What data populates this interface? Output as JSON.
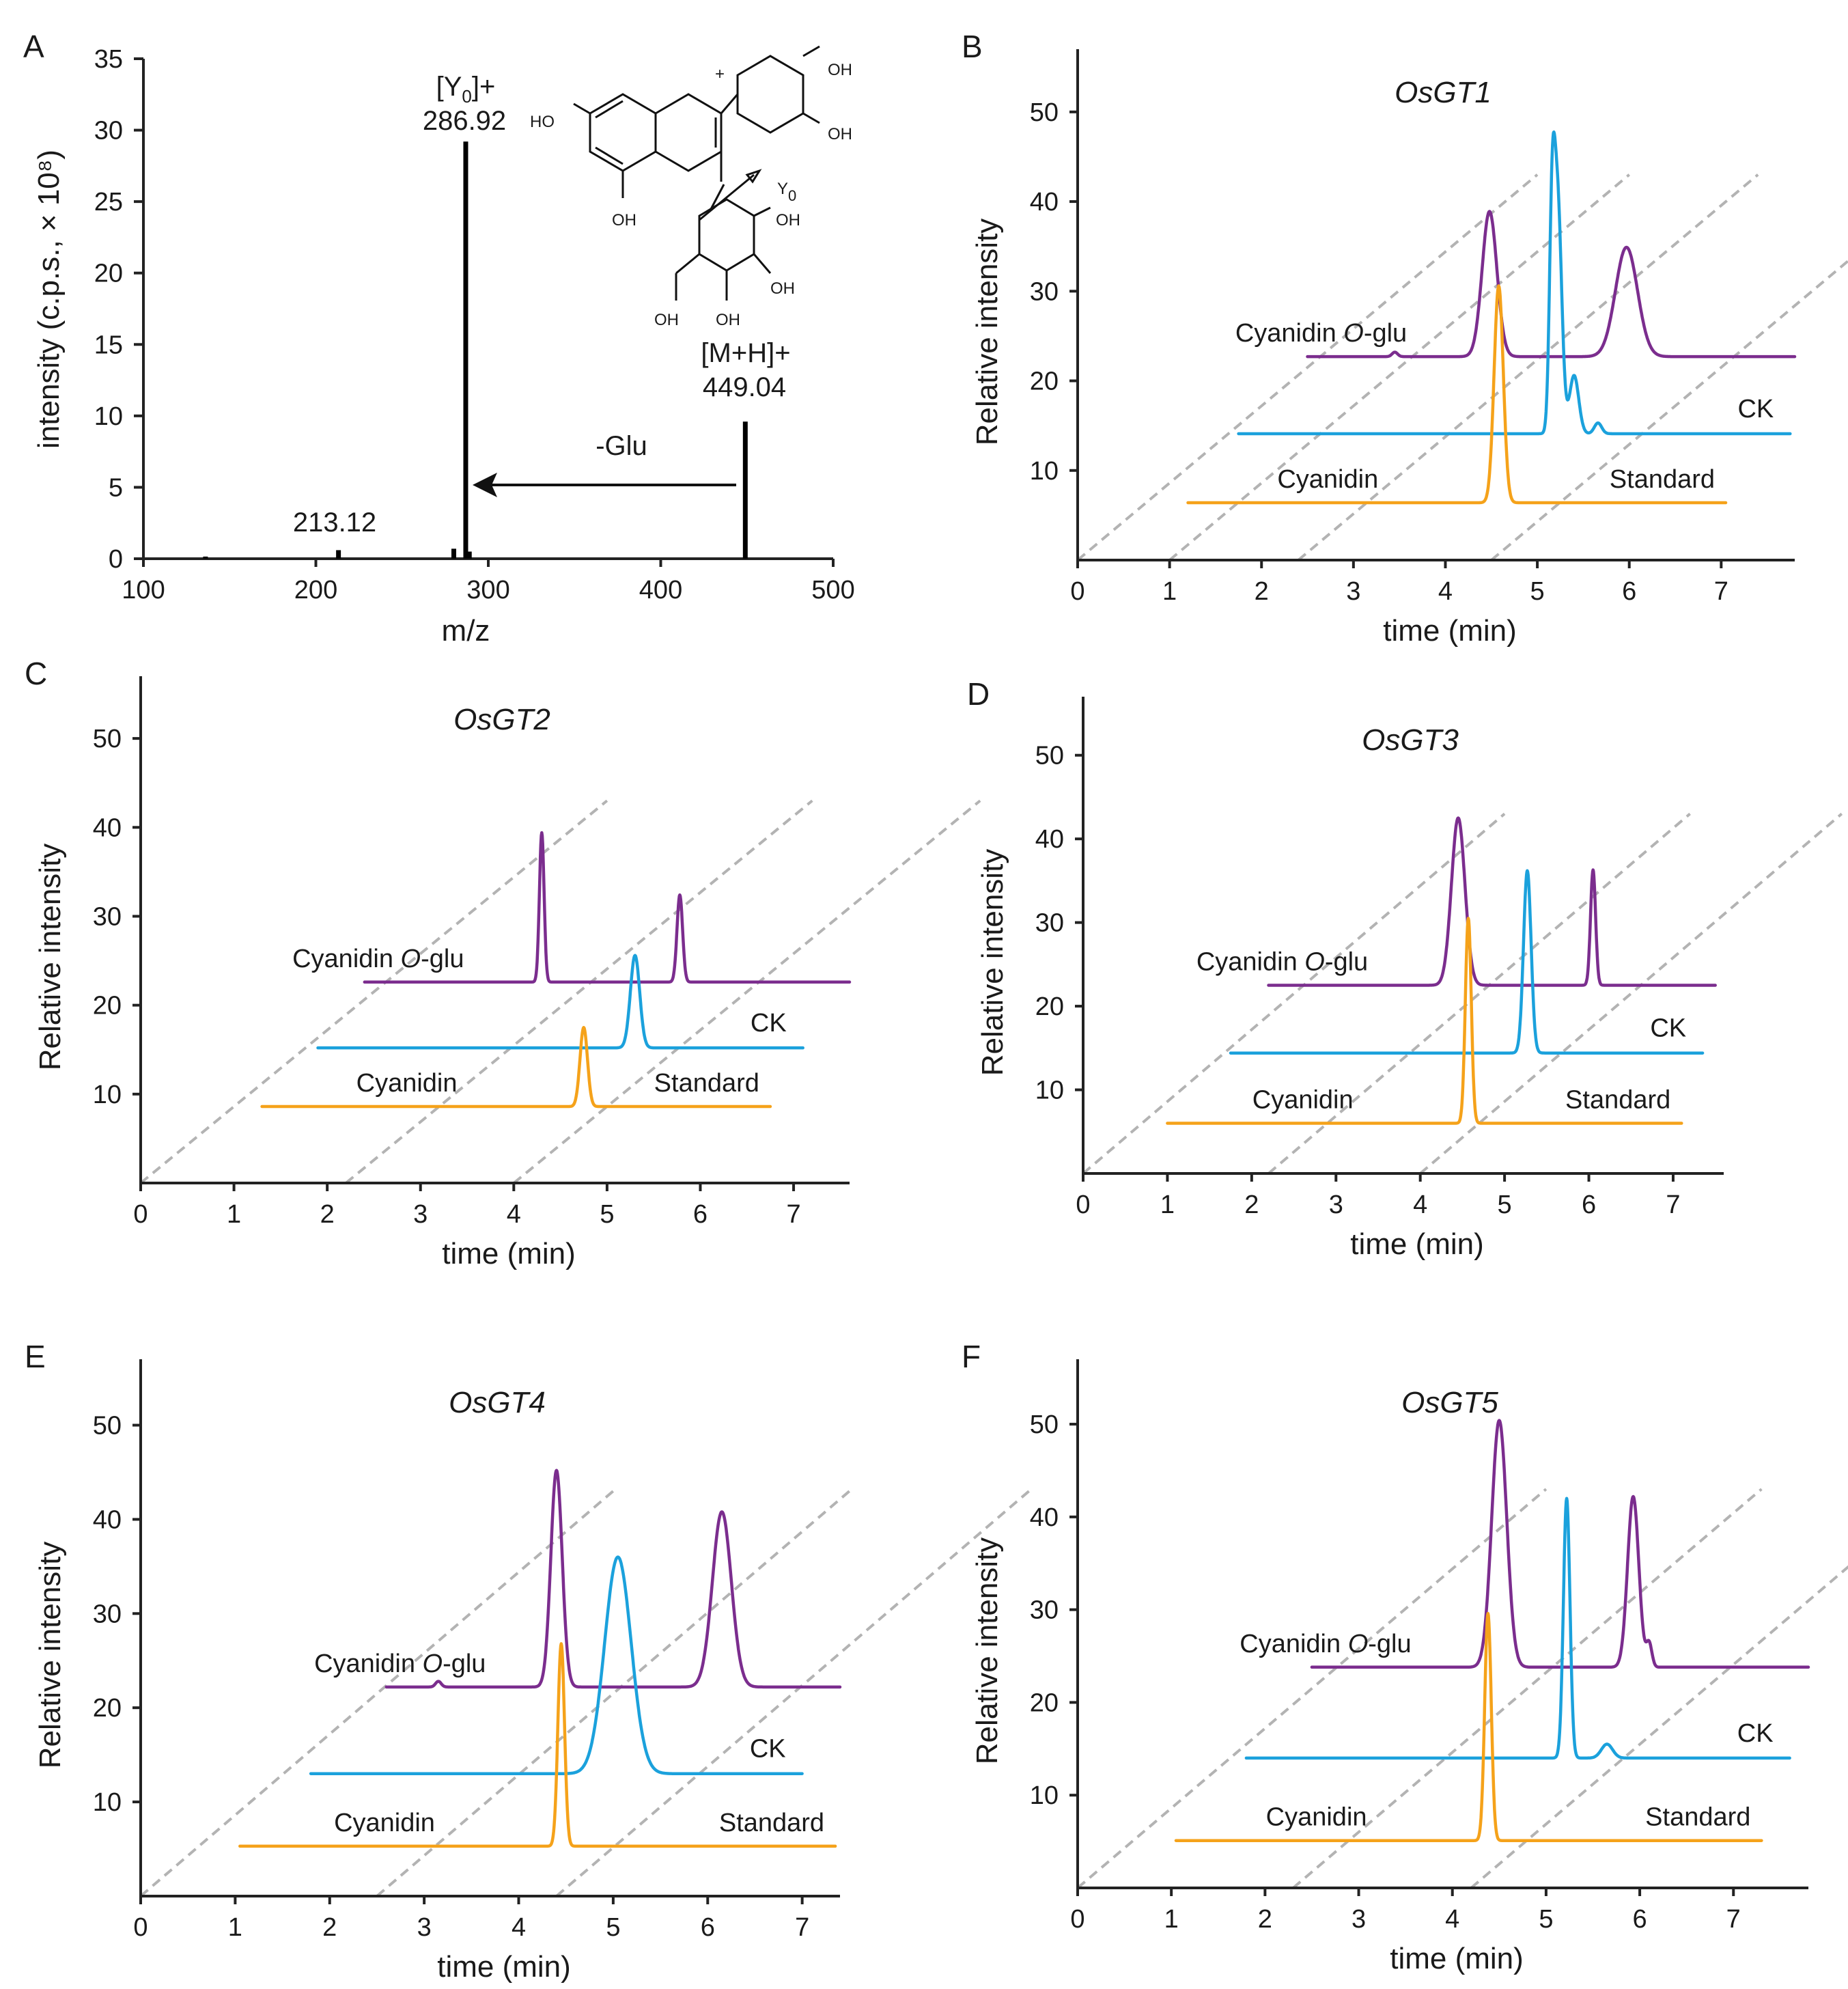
{
  "colors": {
    "cyanidin_o_glu": "#7b2d8e",
    "ck": "#1ba1dc",
    "standard": "#f5a21a",
    "axis": "#222222",
    "diagonal": "#b3b3b3"
  },
  "chart_data": [
    {
      "panel": "A",
      "type": "bar",
      "title": "",
      "xlabel": "m/z",
      "ylabel": "intensity (c.p.s., × 10⁸)",
      "xlim": [
        100,
        500
      ],
      "ylim": [
        0,
        35
      ],
      "x_ticks": [
        "100",
        "200",
        "300",
        "400",
        "500"
      ],
      "y_ticks": [
        "0",
        "5",
        "10",
        "15",
        "20",
        "25",
        "30",
        "35"
      ],
      "peaks": [
        {
          "mz": 136,
          "intensity": 0.15
        },
        {
          "mz": 213.12,
          "intensity": 0.6
        },
        {
          "mz": 280,
          "intensity": 0.7
        },
        {
          "mz": 286.92,
          "intensity": 29.2
        },
        {
          "mz": 289,
          "intensity": 0.5
        },
        {
          "mz": 449.04,
          "intensity": 9.6
        }
      ],
      "annotations": {
        "minor_peak": "213.12",
        "fragment_name": "[Y",
        "fragment_sub": "0",
        "fragment_suffix": "]+",
        "fragment_mz": "286.92",
        "parent_name": "[M+H]+",
        "parent_mz": "449.04",
        "loss": "-Glu",
        "structure_oh": "OH",
        "structure_ho": "HO",
        "structure_cleavage": "Y",
        "structure_cleavage_sub": "0"
      }
    },
    {
      "panel": "B",
      "type": "line",
      "title": "OsGT1",
      "xlabel": "time (min)",
      "ylabel": "Relative intensity",
      "xlim": [
        0,
        7.8
      ],
      "ylim": [
        0,
        57
      ],
      "x_ticks": [
        "0",
        "1",
        "2",
        "3",
        "4",
        "5",
        "6",
        "7"
      ],
      "y_ticks": [
        "10",
        "20",
        "30",
        "40",
        "50"
      ],
      "diagonals": [
        0,
        1,
        2.4,
        4.5
      ],
      "series": [
        {
          "name": "Cyanidin O-glu",
          "key": "cyanidin_o_glu",
          "baseline": 22.7,
          "x_range": [
            2.5,
            7.8
          ],
          "peaks": [
            {
              "x": 4.48,
              "h": 16.2,
              "w": 0.08
            },
            {
              "x": 5.97,
              "h": 12.2,
              "w": 0.12
            },
            {
              "x": 3.45,
              "h": 0.5,
              "w": 0.03
            }
          ]
        },
        {
          "name": "CK",
          "key": "ck",
          "baseline": 14.1,
          "x_range": [
            1.75,
            7.75
          ],
          "peaks": [
            {
              "x": 5.22,
              "h": 26.2,
              "w": 0.045
            },
            {
              "x": 5.16,
              "h": 20.0,
              "w": 0.03
            },
            {
              "x": 5.4,
              "h": 6.5,
              "w": 0.05
            },
            {
              "x": 5.66,
              "h": 1.2,
              "w": 0.04
            }
          ]
        },
        {
          "name": "Standard",
          "key": "standard",
          "baseline": 6.4,
          "x_range": [
            1.2,
            7.05
          ],
          "peaks": [
            {
              "x": 4.58,
              "h": 24.2,
              "w": 0.05
            }
          ]
        }
      ],
      "labels": {
        "cyanidin_o_glu_prefix": "Cyanidin ",
        "cyanidin_o_glu_italic": "O",
        "cyanidin_o_glu_suffix": "-glu",
        "ck": "CK",
        "cyanidin": "Cyanidin",
        "standard": "Standard"
      }
    },
    {
      "panel": "C",
      "type": "line",
      "title": "OsGT2",
      "xlabel": "time (min)",
      "ylabel": "Relative intensity",
      "xlim": [
        0,
        7.6
      ],
      "ylim": [
        0,
        57
      ],
      "x_ticks": [
        "0",
        "1",
        "2",
        "3",
        "4",
        "5",
        "6",
        "7"
      ],
      "y_ticks": [
        "10",
        "20",
        "30",
        "40",
        "50"
      ],
      "diagonals": [
        0,
        2.2,
        4.0
      ],
      "series": [
        {
          "name": "Cyanidin O-glu",
          "key": "cyanidin_o_glu",
          "baseline": 22.6,
          "x_range": [
            2.4,
            7.6
          ],
          "peaks": [
            {
              "x": 4.3,
              "h": 16.8,
              "w": 0.025
            },
            {
              "x": 5.78,
              "h": 9.8,
              "w": 0.03
            }
          ]
        },
        {
          "name": "CK",
          "key": "ck",
          "baseline": 15.2,
          "x_range": [
            1.9,
            7.1
          ],
          "peaks": [
            {
              "x": 5.3,
              "h": 10.4,
              "w": 0.05
            }
          ]
        },
        {
          "name": "Standard",
          "key": "standard",
          "baseline": 8.6,
          "x_range": [
            1.3,
            6.75
          ],
          "peaks": [
            {
              "x": 4.75,
              "h": 8.9,
              "w": 0.04
            }
          ]
        }
      ],
      "labels": {
        "cyanidin_o_glu_prefix": "Cyanidin ",
        "cyanidin_o_glu_italic": "O",
        "cyanidin_o_glu_suffix": "-glu",
        "ck": "CK",
        "cyanidin": "Cyanidin",
        "standard": "Standard"
      }
    },
    {
      "panel": "D",
      "type": "line",
      "title": "OsGT3",
      "xlabel": "time (min)",
      "ylabel": "Relative intensity",
      "xlim": [
        0,
        7.6
      ],
      "ylim": [
        0,
        57
      ],
      "x_ticks": [
        "0",
        "1",
        "2",
        "3",
        "4",
        "5",
        "6",
        "7"
      ],
      "y_ticks": [
        "10",
        "20",
        "30",
        "40",
        "50"
      ],
      "diagonals": [
        0,
        2.2,
        4.0
      ],
      "series": [
        {
          "name": "Cyanidin O-glu",
          "key": "cyanidin_o_glu",
          "baseline": 22.5,
          "x_range": [
            2.2,
            7.5
          ],
          "peaks": [
            {
              "x": 4.45,
              "h": 20.0,
              "w": 0.08
            },
            {
              "x": 6.05,
              "h": 13.8,
              "w": 0.03
            }
          ]
        },
        {
          "name": "CK",
          "key": "ck",
          "baseline": 14.4,
          "x_range": [
            1.75,
            7.35
          ],
          "peaks": [
            {
              "x": 5.27,
              "h": 21.8,
              "w": 0.045
            }
          ]
        },
        {
          "name": "Standard",
          "key": "standard",
          "baseline": 6.0,
          "x_range": [
            1.0,
            7.1
          ],
          "peaks": [
            {
              "x": 4.57,
              "h": 24.5,
              "w": 0.035
            }
          ]
        }
      ],
      "labels": {
        "cyanidin_o_glu_prefix": "Cyanidin ",
        "cyanidin_o_glu_italic": "O",
        "cyanidin_o_glu_suffix": "-glu",
        "ck": "CK",
        "cyanidin": "Cyanidin",
        "standard": "Standard"
      }
    },
    {
      "panel": "E",
      "type": "line",
      "title": "OsGT4",
      "xlabel": "time (min)",
      "ylabel": "Relative intensity",
      "xlim": [
        0,
        7.4
      ],
      "ylim": [
        0,
        57
      ],
      "x_ticks": [
        "0",
        "1",
        "2",
        "3",
        "4",
        "5",
        "6",
        "7"
      ],
      "y_ticks": [
        "10",
        "20",
        "30",
        "40",
        "50"
      ],
      "diagonals": [
        0,
        2.5,
        4.4
      ],
      "series": [
        {
          "name": "Cyanidin O-glu",
          "key": "cyanidin_o_glu",
          "baseline": 22.2,
          "x_range": [
            2.6,
            7.4
          ],
          "peaks": [
            {
              "x": 4.4,
              "h": 23.0,
              "w": 0.06
            },
            {
              "x": 6.15,
              "h": 18.6,
              "w": 0.1
            },
            {
              "x": 3.15,
              "h": 0.6,
              "w": 0.03
            }
          ]
        },
        {
          "name": "CK",
          "key": "ck",
          "baseline": 13.0,
          "x_range": [
            1.8,
            7.0
          ],
          "peaks": [
            {
              "x": 5.05,
              "h": 23.0,
              "w": 0.14
            }
          ]
        },
        {
          "name": "Standard",
          "key": "standard",
          "baseline": 5.3,
          "x_range": [
            1.05,
            7.35
          ],
          "peaks": [
            {
              "x": 4.45,
              "h": 21.5,
              "w": 0.035
            }
          ]
        }
      ],
      "labels": {
        "cyanidin_o_glu_prefix": "Cyanidin ",
        "cyanidin_o_glu_italic": "O",
        "cyanidin_o_glu_suffix": "-glu",
        "ck": "CK",
        "cyanidin": "Cyanidin",
        "standard": "Standard"
      }
    },
    {
      "panel": "F",
      "type": "line",
      "title": "OsGT5",
      "xlabel": "time (min)",
      "ylabel": "Relative intensity",
      "xlim": [
        0,
        7.8
      ],
      "ylim": [
        0,
        57
      ],
      "x_ticks": [
        "0",
        "1",
        "2",
        "3",
        "4",
        "5",
        "6",
        "7"
      ],
      "y_ticks": [
        "10",
        "20",
        "30",
        "40",
        "50"
      ],
      "diagonals": [
        0,
        2.3,
        4.2
      ],
      "series": [
        {
          "name": "Cyanidin O-glu",
          "key": "cyanidin_o_glu",
          "baseline": 23.8,
          "x_range": [
            2.5,
            7.8
          ],
          "peaks": [
            {
              "x": 4.5,
              "h": 26.6,
              "w": 0.08
            },
            {
              "x": 5.93,
              "h": 18.4,
              "w": 0.06
            },
            {
              "x": 6.1,
              "h": 2.5,
              "w": 0.03
            }
          ]
        },
        {
          "name": "CK",
          "key": "ck",
          "baseline": 14.0,
          "x_range": [
            1.8,
            7.6
          ],
          "peaks": [
            {
              "x": 5.22,
              "h": 28.0,
              "w": 0.035
            },
            {
              "x": 5.65,
              "h": 1.5,
              "w": 0.06
            }
          ]
        },
        {
          "name": "Standard",
          "key": "standard",
          "baseline": 5.1,
          "x_range": [
            1.05,
            7.3
          ],
          "peaks": [
            {
              "x": 4.38,
              "h": 24.5,
              "w": 0.035
            }
          ]
        }
      ],
      "labels": {
        "cyanidin_o_glu_prefix": "Cyanidin ",
        "cyanidin_o_glu_italic": "O",
        "cyanidin_o_glu_suffix": "-glu",
        "ck": "CK",
        "cyanidin": "Cyanidin",
        "standard": "Standard"
      }
    }
  ]
}
